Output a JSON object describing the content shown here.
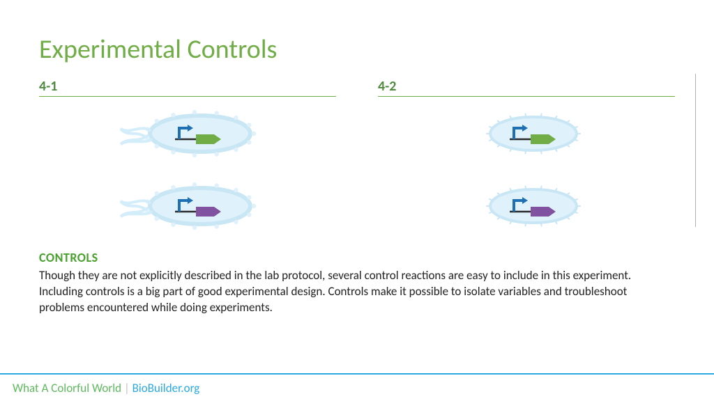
{
  "title": {
    "text": "Experimental Controls",
    "color": "#70ad47",
    "fontsize": 38
  },
  "columns": [
    {
      "label": "4-1",
      "label_color": "#4f8a3f",
      "rule_color": "#70ad47",
      "cells": [
        {
          "shape": "bacterium",
          "gene_color": "#70ad47"
        },
        {
          "shape": "bacterium",
          "gene_color": "#8052a0"
        }
      ]
    },
    {
      "label": "4-2",
      "label_color": "#4f8a3f",
      "rule_color": "#70ad47",
      "cells": [
        {
          "shape": "oval",
          "gene_color": "#70ad47"
        },
        {
          "shape": "oval",
          "gene_color": "#8052a0"
        }
      ]
    }
  ],
  "cell_style": {
    "fill": "#dff1fb",
    "stroke": "#c9e6f5",
    "tail_stroke": "#d4edfa",
    "promoter_color": "#1f6fb5",
    "gene_line_color": "#2a2a2a"
  },
  "separator_color": "#b0b0b0",
  "controls_heading": {
    "text": "CONTROLS",
    "color": "#48a12c"
  },
  "body_text": {
    "text": "Though they are not explicitly described in the lab protocol, several control reactions are easy to include in this experiment. Including controls is a big part of good experimental design. Controls make it possible to isolate variables and troubleshoot problems encountered while doing experiments.",
    "color": "#222222"
  },
  "footer": {
    "rule_color": "#2baae2",
    "left": {
      "text": "What A Colorful World",
      "color": "#5fba5d"
    },
    "sep": "|",
    "right": {
      "text": "BioBuilder.org",
      "color": "#2baae2"
    }
  }
}
